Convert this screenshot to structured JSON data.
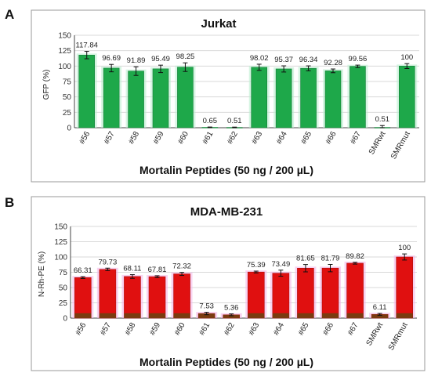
{
  "figure": {
    "panel_labels": [
      "A",
      "B"
    ]
  },
  "chart_data": [
    {
      "type": "bar",
      "panel": "A",
      "title": "Jurkat",
      "xlabel": "Mortalin Peptides (50 ng / 200 µL)",
      "ylabel": "GFP (%)",
      "ylim": [
        0,
        150
      ],
      "yticks": [
        0,
        25,
        50,
        75,
        100,
        125,
        150
      ],
      "categories": [
        "#56",
        "#57",
        "#58",
        "#59",
        "#60",
        "#61",
        "#62",
        "#63",
        "#64",
        "#65",
        "#66",
        "#67",
        "SMRwt",
        "SMRmut"
      ],
      "values": [
        117.84,
        96.69,
        91.89,
        95.49,
        98.25,
        0.65,
        0.51,
        98.02,
        95.37,
        96.34,
        92.28,
        99.56,
        0.51,
        100
      ],
      "value_labels": [
        "117.84",
        "96.69",
        "91.89",
        "95.49",
        "98.25",
        "0.65",
        "0.51",
        "98.02",
        "95.37",
        "96.34",
        "92.28",
        "99.56",
        "0.51",
        "100"
      ],
      "errors": [
        6,
        6,
        7,
        6,
        7,
        0.5,
        0.5,
        5,
        5,
        4,
        3,
        2,
        3,
        4
      ],
      "grid": true,
      "colors": {
        "bar": "#1ea84a",
        "bar_edge": "#16803a",
        "glow": "#bdeed0"
      }
    },
    {
      "type": "bar",
      "panel": "B",
      "title": "MDA-MB-231",
      "xlabel": "Mortalin Peptides (50 ng / 200 µL)",
      "ylabel": "N-Rh-PE (%)",
      "ylim": [
        0,
        150
      ],
      "yticks": [
        0,
        25,
        50,
        75,
        100,
        125,
        150
      ],
      "categories": [
        "#56",
        "#57",
        "#58",
        "#59",
        "#60",
        "#61",
        "#62",
        "#63",
        "#64",
        "#65",
        "#66",
        "#67",
        "SMRwt",
        "SMRmut"
      ],
      "values": [
        66.31,
        79.73,
        68.11,
        67.81,
        72.32,
        7.53,
        5.36,
        75.39,
        73.49,
        81.65,
        81.79,
        89.82,
        6.11,
        100
      ],
      "value_labels": [
        "66.31",
        "79.73",
        "68.11",
        "67.81",
        "72.32",
        "7.53",
        "5.36",
        "75.39",
        "73.49",
        "81.65",
        "81.79",
        "89.82",
        "6.11",
        "100"
      ],
      "errors": [
        1.5,
        2,
        3,
        1.5,
        2.5,
        2,
        1.5,
        1.5,
        5,
        6,
        6,
        1.5,
        1.5,
        5
      ],
      "base_values": [
        8,
        8,
        8,
        8,
        8,
        7.53,
        5.36,
        8,
        8,
        8,
        8,
        8,
        6.11,
        8
      ],
      "grid": true,
      "colors": {
        "bar": "#e01010",
        "bar_edge": "#b00c0c",
        "base": "#7a3b10",
        "glow": "#f4b6e8"
      }
    }
  ]
}
